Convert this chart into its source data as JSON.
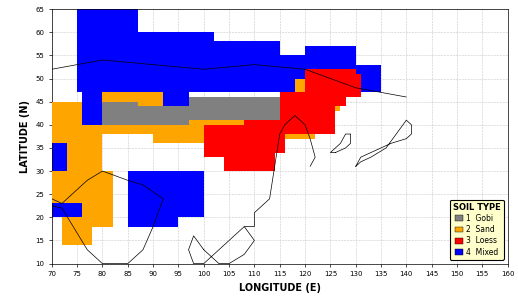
{
  "title": "",
  "xlabel": "LONGITUDE (E)",
  "ylabel": "LATITUDE (N)",
  "xlim": [
    70,
    160
  ],
  "ylim": [
    10,
    65
  ],
  "xticks": [
    70,
    75,
    80,
    85,
    90,
    95,
    100,
    105,
    110,
    115,
    120,
    125,
    130,
    135,
    140,
    145,
    150,
    155,
    160
  ],
  "yticks": [
    10,
    15,
    20,
    25,
    30,
    35,
    40,
    45,
    50,
    55,
    60,
    65
  ],
  "legend_title": "SOIL TYPE",
  "soil_names": [
    "Gobi",
    "Sand",
    "Loess",
    "Mixed"
  ],
  "colors": {
    "gobi": "#808080",
    "sand": "#FFA500",
    "loess": "#FF0000",
    "mixed": "#0000FF"
  },
  "background_color": "#ffffff",
  "grid_color": "#C8C8C8",
  "grid_linestyle": "--",
  "legend_facecolor": "#FFFFCC",
  "tick_fontsize": 5,
  "label_fontsize": 7
}
